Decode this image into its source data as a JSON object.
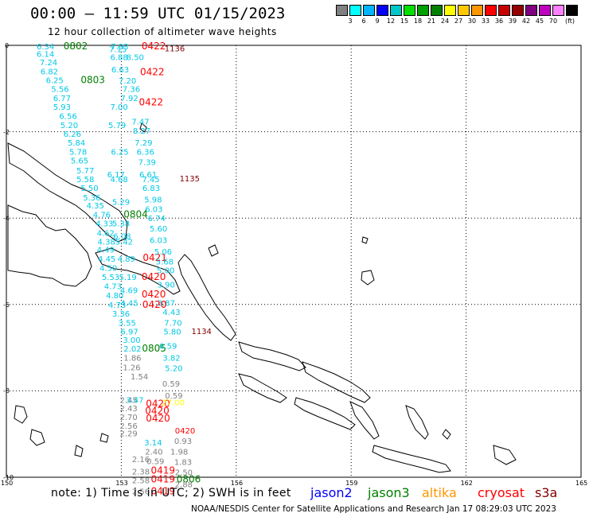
{
  "header": {
    "title": "00:00 – 11:59 UTC 01/15/2023",
    "subtitle": "12 hour collection of altimeter wave heights"
  },
  "colorbar": {
    "colors": [
      "#808080",
      "#00ffff",
      "#00b4ff",
      "#0000ff",
      "#00c8c8",
      "#00e000",
      "#00a000",
      "#008000",
      "#ffff00",
      "#ffc800",
      "#ff9600",
      "#ff0000",
      "#c80000",
      "#960000",
      "#800080",
      "#c000c0",
      "#ff80ff",
      "#000000"
    ],
    "labels": [
      "3",
      "6",
      "9",
      "12",
      "15",
      "18",
      "21",
      "24",
      "27",
      "30",
      "33",
      "36",
      "39",
      "42",
      "45",
      "70"
    ],
    "unit": "(ft)"
  },
  "axes": {
    "x_ticks": [
      "150",
      "153",
      "156",
      "159",
      "162",
      "165"
    ],
    "y_ticks": [
      "0",
      "-2",
      "-4",
      "-6",
      "-8",
      "-10"
    ]
  },
  "footer": {
    "note": "note:  1) Time is in UTC;  2) SWH is in feet",
    "credit": "NOAA/NESDIS Center for Satellite Applications and Research    Jan 17 08:29:03 UTC 2023",
    "satellites": [
      {
        "name": "jason2",
        "color": "#0000ff"
      },
      {
        "name": "jason3",
        "color": "#008000"
      },
      {
        "name": "altika",
        "color": "#ff9600"
      },
      {
        "name": "cryosat",
        "color": "#ff0000"
      },
      {
        "name": "s3a",
        "color": "#800000"
      }
    ]
  },
  "map_labels": [
    {
      "t": "6.34",
      "lon": 150.79,
      "lat": -0.02,
      "c": "#00c8e6"
    },
    {
      "t": "0802",
      "lon": 151.49,
      "lat": -0.02,
      "c": "#008000",
      "b": 1
    },
    {
      "t": "7.93",
      "lon": 152.73,
      "lat": -0.02,
      "c": "#00c8e6"
    },
    {
      "t": "0422",
      "lon": 153.53,
      "lat": -0.02,
      "c": "#ff0000",
      "b": 1
    },
    {
      "t": "1136",
      "lon": 154.13,
      "lat": -0.06,
      "c": "#800000"
    },
    {
      "t": "7.15",
      "lon": 152.68,
      "lat": -0.08,
      "c": "#00c8e6"
    },
    {
      "t": "6.14",
      "lon": 150.79,
      "lat": -0.19,
      "c": "#00c8e6"
    },
    {
      "t": "6.88",
      "lon": 152.71,
      "lat": -0.27,
      "c": "#00c8e6"
    },
    {
      "t": "8.50",
      "lon": 153.13,
      "lat": -0.27,
      "c": "#00c8e6"
    },
    {
      "t": "7.24",
      "lon": 150.87,
      "lat": -0.39,
      "c": "#00c8e6"
    },
    {
      "t": "6.82",
      "lon": 150.89,
      "lat": -0.6,
      "c": "#00c8e6"
    },
    {
      "t": "6.63",
      "lon": 152.74,
      "lat": -0.55,
      "c": "#00c8e6"
    },
    {
      "t": "0422",
      "lon": 153.49,
      "lat": -0.62,
      "c": "#ff0000",
      "b": 1
    },
    {
      "t": "6.25",
      "lon": 151.03,
      "lat": -0.8,
      "c": "#00c8e6"
    },
    {
      "t": "0803",
      "lon": 151.94,
      "lat": -0.8,
      "c": "#008000",
      "b": 1
    },
    {
      "t": "7.20",
      "lon": 152.93,
      "lat": -0.81,
      "c": "#00c8e6"
    },
    {
      "t": "5.56",
      "lon": 151.17,
      "lat": -1.0,
      "c": "#00c8e6"
    },
    {
      "t": "7.36",
      "lon": 153.03,
      "lat": -1.0,
      "c": "#00c8e6"
    },
    {
      "t": "6.77",
      "lon": 151.22,
      "lat": -1.22,
      "c": "#00c8e6"
    },
    {
      "t": "7.92",
      "lon": 152.98,
      "lat": -1.22,
      "c": "#00c8e6"
    },
    {
      "t": "0422",
      "lon": 153.46,
      "lat": -1.32,
      "c": "#ff0000",
      "b": 1
    },
    {
      "t": "5.93",
      "lon": 151.22,
      "lat": -1.42,
      "c": "#00c8e6"
    },
    {
      "t": "7.00",
      "lon": 152.71,
      "lat": -1.42,
      "c": "#00c8e6"
    },
    {
      "t": "6.56",
      "lon": 151.38,
      "lat": -1.63,
      "c": "#00c8e6"
    },
    {
      "t": "7.47",
      "lon": 153.27,
      "lat": -1.76,
      "c": "#00c8e6"
    },
    {
      "t": "5.20",
      "lon": 151.41,
      "lat": -1.84,
      "c": "#00c8e6"
    },
    {
      "t": "5.79",
      "lon": 152.66,
      "lat": -1.84,
      "c": "#00c8e6"
    },
    {
      "t": "8.27",
      "lon": 153.3,
      "lat": -1.97,
      "c": "#00c8e6"
    },
    {
      "t": "6.26",
      "lon": 151.49,
      "lat": -2.04,
      "c": "#00c8e6"
    },
    {
      "t": "5.84",
      "lon": 151.6,
      "lat": -2.25,
      "c": "#00c8e6"
    },
    {
      "t": "7.29",
      "lon": 153.35,
      "lat": -2.25,
      "c": "#00c8e6"
    },
    {
      "t": "5.78",
      "lon": 151.64,
      "lat": -2.46,
      "c": "#00c8e6"
    },
    {
      "t": "6.25",
      "lon": 152.73,
      "lat": -2.46,
      "c": "#00c8e6"
    },
    {
      "t": "6.36",
      "lon": 153.4,
      "lat": -2.46,
      "c": "#00c8e6"
    },
    {
      "t": "5.65",
      "lon": 151.68,
      "lat": -2.66,
      "c": "#00c8e6"
    },
    {
      "t": "7.39",
      "lon": 153.44,
      "lat": -2.7,
      "c": "#00c8e6"
    },
    {
      "t": "5.77",
      "lon": 151.83,
      "lat": -2.89,
      "c": "#00c8e6"
    },
    {
      "t": "6.17",
      "lon": 152.63,
      "lat": -2.98,
      "c": "#00c8e6"
    },
    {
      "t": "6.61",
      "lon": 153.47,
      "lat": -2.98,
      "c": "#00c8e6"
    },
    {
      "t": "5.58",
      "lon": 151.83,
      "lat": -3.09,
      "c": "#00c8e6"
    },
    {
      "t": "4.68",
      "lon": 152.71,
      "lat": -3.09,
      "c": "#00c8e6"
    },
    {
      "t": "7.45",
      "lon": 153.54,
      "lat": -3.09,
      "c": "#00c8e6"
    },
    {
      "t": "1135",
      "lon": 154.52,
      "lat": -3.08,
      "c": "#800000"
    },
    {
      "t": "5.50",
      "lon": 151.94,
      "lat": -3.3,
      "c": "#00c8e6"
    },
    {
      "t": "6.83",
      "lon": 153.55,
      "lat": -3.3,
      "c": "#00c8e6"
    },
    {
      "t": "5.36",
      "lon": 152.0,
      "lat": -3.52,
      "c": "#00c8e6"
    },
    {
      "t": "5.98",
      "lon": 153.6,
      "lat": -3.56,
      "c": "#00c8e6"
    },
    {
      "t": "4.35",
      "lon": 152.09,
      "lat": -3.7,
      "c": "#00c8e6"
    },
    {
      "t": "5.29",
      "lon": 152.76,
      "lat": -3.62,
      "c": "#00c8e6"
    },
    {
      "t": "6.03",
      "lon": 153.62,
      "lat": -3.78,
      "c": "#00c8e6"
    },
    {
      "t": "4.76",
      "lon": 152.26,
      "lat": -3.91,
      "c": "#00c8e6"
    },
    {
      "t": "0804",
      "lon": 153.06,
      "lat": -3.91,
      "c": "#008000",
      "b": 1
    },
    {
      "t": "4.33",
      "lon": 152.33,
      "lat": -4.12,
      "c": "#00c8e6"
    },
    {
      "t": "5.38",
      "lon": 152.76,
      "lat": -4.12,
      "c": "#00c8e6"
    },
    {
      "t": "6.74",
      "lon": 153.69,
      "lat": -4.0,
      "c": "#00c8e6"
    },
    {
      "t": "6.08",
      "lon": 152.79,
      "lat": -4.41,
      "c": "#00c8e6"
    },
    {
      "t": "4.62",
      "lon": 152.36,
      "lat": -4.34,
      "c": "#00c8e6"
    },
    {
      "t": "5.60",
      "lon": 153.74,
      "lat": -4.24,
      "c": "#00c8e6"
    },
    {
      "t": "4.38",
      "lon": 152.38,
      "lat": -4.54,
      "c": "#00c8e6"
    },
    {
      "t": "5.42",
      "lon": 152.84,
      "lat": -4.54,
      "c": "#00c8e6"
    },
    {
      "t": "6.03",
      "lon": 153.74,
      "lat": -4.5,
      "c": "#00c8e6"
    },
    {
      "t": "4.49",
      "lon": 152.36,
      "lat": -4.72,
      "c": "#00c8e6"
    },
    {
      "t": "4.45",
      "lon": 152.39,
      "lat": -4.94,
      "c": "#00c8e6"
    },
    {
      "t": "4.89",
      "lon": 152.9,
      "lat": -4.94,
      "c": "#00c8e6"
    },
    {
      "t": "0421",
      "lon": 153.56,
      "lat": -4.92,
      "c": "#ff0000",
      "b": 1
    },
    {
      "t": "5.06",
      "lon": 153.86,
      "lat": -4.77,
      "c": "#00c8e6"
    },
    {
      "t": "4.50",
      "lon": 152.43,
      "lat": -5.15,
      "c": "#00c8e6"
    },
    {
      "t": "5.68",
      "lon": 153.9,
      "lat": -5.0,
      "c": "#00c8e6"
    },
    {
      "t": "5.53",
      "lon": 152.49,
      "lat": -5.36,
      "c": "#00c8e6"
    },
    {
      "t": "5.19",
      "lon": 152.94,
      "lat": -5.36,
      "c": "#00c8e6"
    },
    {
      "t": "0420",
      "lon": 153.53,
      "lat": -5.36,
      "c": "#ff0000",
      "b": 1
    },
    {
      "t": "5.00",
      "lon": 153.93,
      "lat": -5.2,
      "c": "#00c8e6"
    },
    {
      "t": "3.90",
      "lon": 153.94,
      "lat": -5.53,
      "c": "#00c8e6"
    },
    {
      "t": "4.73",
      "lon": 152.55,
      "lat": -5.57,
      "c": "#00c8e6"
    },
    {
      "t": "4.69",
      "lon": 152.97,
      "lat": -5.66,
      "c": "#00c8e6"
    },
    {
      "t": "0420",
      "lon": 153.53,
      "lat": -5.76,
      "c": "#ff0000",
      "b": 1
    },
    {
      "t": "4.80",
      "lon": 152.6,
      "lat": -5.78,
      "c": "#00c8e6"
    },
    {
      "t": "3.87",
      "lon": 153.94,
      "lat": -5.96,
      "c": "#00c8e6"
    },
    {
      "t": "4.45",
      "lon": 152.98,
      "lat": -5.96,
      "c": "#00c8e6"
    },
    {
      "t": "0420",
      "lon": 153.55,
      "lat": -6.0,
      "c": "#ff0000",
      "b": 1
    },
    {
      "t": "4.73",
      "lon": 152.66,
      "lat": -6.0,
      "c": "#00c8e6"
    },
    {
      "t": "4.43",
      "lon": 154.08,
      "lat": -6.17,
      "c": "#00c8e6"
    },
    {
      "t": "3.36",
      "lon": 152.76,
      "lat": -6.21,
      "c": "#00c8e6"
    },
    {
      "t": "3.55",
      "lon": 152.92,
      "lat": -6.42,
      "c": "#00c8e6"
    },
    {
      "t": "7.70",
      "lon": 154.12,
      "lat": -6.42,
      "c": "#00c8e6"
    },
    {
      "t": "6.97",
      "lon": 152.98,
      "lat": -6.62,
      "c": "#00c8e6"
    },
    {
      "t": "5.80",
      "lon": 154.1,
      "lat": -6.62,
      "c": "#00c8e6"
    },
    {
      "t": "1134",
      "lon": 154.83,
      "lat": -6.61,
      "c": "#800000"
    },
    {
      "t": "3.00",
      "lon": 153.04,
      "lat": -6.81,
      "c": "#00c8e6"
    },
    {
      "t": "2.02",
      "lon": 153.06,
      "lat": -7.02,
      "c": "#00c8e6"
    },
    {
      "t": "0805",
      "lon": 153.54,
      "lat": -7.02,
      "c": "#008000",
      "b": 1
    },
    {
      "t": "6.59",
      "lon": 153.99,
      "lat": -6.95,
      "c": "#00c8e6"
    },
    {
      "t": "1.86",
      "lon": 153.06,
      "lat": -7.23,
      "c": "#808080"
    },
    {
      "t": "3.82",
      "lon": 154.08,
      "lat": -7.23,
      "c": "#00c8e6"
    },
    {
      "t": "1.26",
      "lon": 153.04,
      "lat": -7.45,
      "c": "#808080"
    },
    {
      "t": "5.20",
      "lon": 154.14,
      "lat": -7.47,
      "c": "#00c8e6"
    },
    {
      "t": "1.54",
      "lon": 153.24,
      "lat": -7.66,
      "c": "#808080"
    },
    {
      "t": "0.59",
      "lon": 154.07,
      "lat": -7.83,
      "c": "#808080"
    },
    {
      "t": "0.59",
      "lon": 154.14,
      "lat": -8.1,
      "c": "#808080"
    },
    {
      "t": "2.45",
      "lon": 152.96,
      "lat": -8.2,
      "c": "#808080"
    },
    {
      "t": "3.47",
      "lon": 153.12,
      "lat": -8.2,
      "c": "#00c8e6"
    },
    {
      "t": "0420",
      "lon": 153.64,
      "lat": -8.3,
      "c": "#ff0000",
      "b": 1
    },
    {
      "t": "27.00",
      "lon": 154.06,
      "lat": -8.26,
      "c": "#ffff00"
    },
    {
      "t": "2.43",
      "lon": 152.96,
      "lat": -8.4,
      "c": "#808080"
    },
    {
      "t": "0420",
      "lon": 153.62,
      "lat": -8.46,
      "c": "#ff0000",
      "b": 1
    },
    {
      "t": "2.70",
      "lon": 152.96,
      "lat": -8.6,
      "c": "#808080"
    },
    {
      "t": "0420",
      "lon": 153.64,
      "lat": -8.64,
      "c": "#ff0000",
      "b": 1
    },
    {
      "t": "2.56",
      "lon": 152.96,
      "lat": -8.8,
      "c": "#808080"
    },
    {
      "t": "0420",
      "lon": 154.4,
      "lat": -8.91,
      "c": "#ff0000"
    },
    {
      "t": "2.29",
      "lon": 152.96,
      "lat": -8.98,
      "c": "#808080"
    },
    {
      "t": "3.14",
      "lon": 153.6,
      "lat": -9.19,
      "c": "#00c8e6"
    },
    {
      "t": "0.93",
      "lon": 154.38,
      "lat": -9.15,
      "c": "#808080"
    },
    {
      "t": "2.40",
      "lon": 153.62,
      "lat": -9.4,
      "c": "#808080"
    },
    {
      "t": "1.98",
      "lon": 154.28,
      "lat": -9.4,
      "c": "#808080"
    },
    {
      "t": "2.16",
      "lon": 153.28,
      "lat": -9.58,
      "c": "#808080"
    },
    {
      "t": "0.59",
      "lon": 153.66,
      "lat": -9.62,
      "c": "#808080"
    },
    {
      "t": "1.83",
      "lon": 154.38,
      "lat": -9.64,
      "c": "#808080"
    },
    {
      "t": "2.38",
      "lon": 153.28,
      "lat": -9.86,
      "c": "#808080"
    },
    {
      "t": "0419",
      "lon": 153.77,
      "lat": -9.84,
      "c": "#ff0000",
      "b": 1
    },
    {
      "t": "2.50",
      "lon": 154.4,
      "lat": -9.88,
      "c": "#808080"
    },
    {
      "t": "2.58",
      "lon": 153.28,
      "lat": -10.06,
      "c": "#808080"
    },
    {
      "t": "0419",
      "lon": 153.77,
      "lat": -10.05,
      "c": "#ff0000",
      "b": 1
    },
    {
      "t": "0806",
      "lon": 154.44,
      "lat": -10.05,
      "c": "#008000",
      "b": 1
    },
    {
      "t": "2.88",
      "lon": 154.4,
      "lat": -10.16,
      "c": "#808080"
    },
    {
      "t": "2.56",
      "lon": 153.28,
      "lat": -10.32,
      "c": "#808080"
    },
    {
      "t": "0419",
      "lon": 153.77,
      "lat": -10.32,
      "c": "#ff0000",
      "b": 1
    }
  ]
}
